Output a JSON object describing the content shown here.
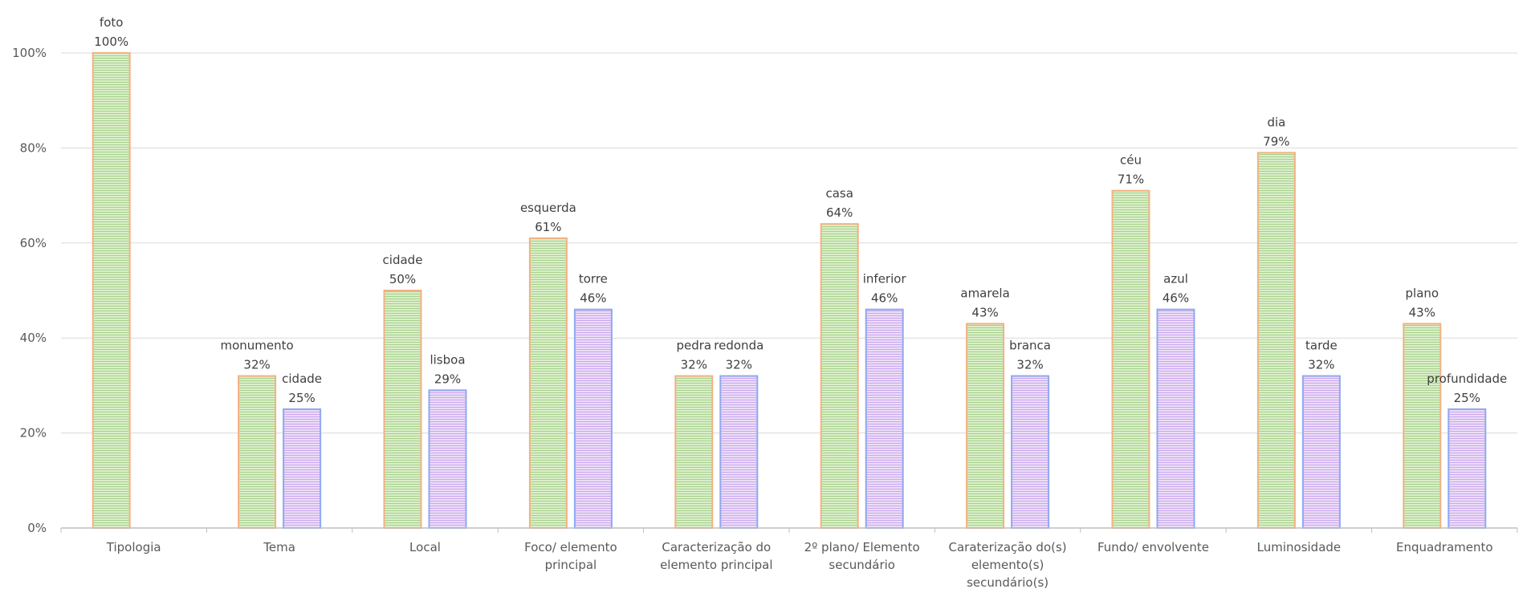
{
  "chart_data": {
    "type": "bar",
    "categories": [
      [
        "Tipologia"
      ],
      [
        "Tema"
      ],
      [
        "Local"
      ],
      [
        "Foco/ elemento",
        "principal"
      ],
      [
        "Caracterização do",
        "elemento principal"
      ],
      [
        "2º plano/ Elemento",
        "secundário"
      ],
      [
        "Caraterização do(s)",
        "elemento(s)",
        "secundário(s)"
      ],
      [
        "Fundo/ envolvente"
      ],
      [
        "Luminosidade"
      ],
      [
        "Enquadramento"
      ]
    ],
    "series": [
      {
        "values": [
          100,
          32,
          50,
          61,
          32,
          64,
          43,
          71,
          79,
          43
        ],
        "labels": [
          "foto",
          "monumento",
          "cidade",
          "esquerda",
          "pedra",
          "casa",
          "amarela",
          "céu",
          "dia",
          "plano"
        ],
        "value_labels": [
          "100%",
          "32%",
          "50%",
          "61%",
          "32%",
          "64%",
          "43%",
          "71%",
          "79%",
          "43%"
        ],
        "fill": "#d4ecc0",
        "stripe": "#a9d08e",
        "border": "#f4b183"
      },
      {
        "values": [
          null,
          25,
          29,
          46,
          32,
          46,
          32,
          46,
          32,
          25
        ],
        "labels": [
          "",
          "cidade",
          "lisboa",
          "torre",
          "redonda",
          "inferior",
          "branca",
          "azul",
          "tarde",
          "profundidade"
        ],
        "value_labels": [
          "",
          "25%",
          "29%",
          "46%",
          "32%",
          "46%",
          "32%",
          "46%",
          "32%",
          "25%"
        ],
        "fill": "#e6d4f5",
        "stripe": "#c9a8ee",
        "border": "#8ea9f0"
      }
    ],
    "yticks": [
      "0%",
      "20%",
      "40%",
      "60%",
      "80%",
      "100%"
    ],
    "ylim": [
      0,
      100
    ],
    "grid": true,
    "legend": "none"
  }
}
